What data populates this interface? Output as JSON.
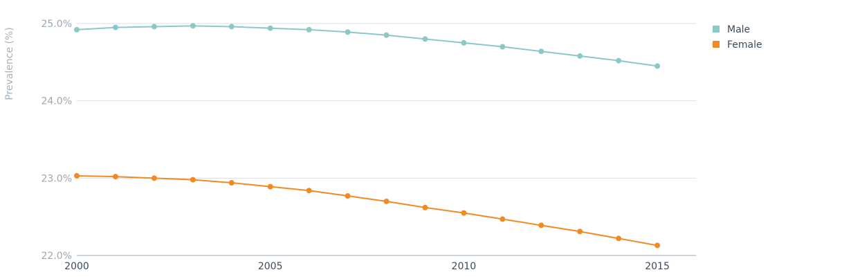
{
  "chart_data": {
    "type": "line",
    "title": "",
    "xlabel": "",
    "ylabel": "Prevalence (%)",
    "x": [
      2000,
      2001,
      2002,
      2003,
      2004,
      2005,
      2006,
      2007,
      2008,
      2009,
      2010,
      2011,
      2012,
      2013,
      2014,
      2015
    ],
    "xlim": [
      2000,
      2016
    ],
    "xticks": [
      2000,
      2005,
      2010,
      2015
    ],
    "xtick_labels": [
      "2000",
      "2005",
      "2010",
      "2015"
    ],
    "ylim": [
      22.0,
      25.0
    ],
    "yticks": [
      22.0,
      23.0,
      24.0,
      25.0
    ],
    "ytick_labels": [
      "22.0%",
      "23.0%",
      "24.0%",
      "25.0%"
    ],
    "grid": true,
    "legend_position": "top-right",
    "series": [
      {
        "name": "Male",
        "color": "#8cc8c8",
        "values": [
          24.92,
          24.95,
          24.96,
          24.97,
          24.96,
          24.94,
          24.92,
          24.89,
          24.85,
          24.8,
          24.75,
          24.7,
          24.64,
          24.58,
          24.52,
          24.45
        ]
      },
      {
        "name": "Female",
        "color": "#f28a23",
        "values": [
          23.03,
          23.02,
          23.0,
          22.98,
          22.94,
          22.89,
          22.84,
          22.77,
          22.7,
          22.62,
          22.55,
          22.47,
          22.39,
          22.31,
          22.22,
          22.13
        ]
      }
    ]
  }
}
